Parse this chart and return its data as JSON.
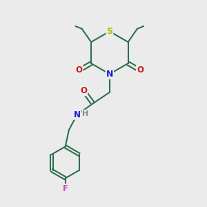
{
  "bg_color": "#ebebeb",
  "bond_color": "#2d6e4e",
  "S_color": "#b8b800",
  "N_color": "#1a1acc",
  "O_color": "#cc1a1a",
  "F_color": "#cc44cc",
  "H_color": "#888888",
  "line_width": 1.5,
  "fig_size": [
    3.0,
    3.0
  ],
  "dpi": 100,
  "xlim": [
    0,
    10
  ],
  "ylim": [
    0,
    10
  ]
}
